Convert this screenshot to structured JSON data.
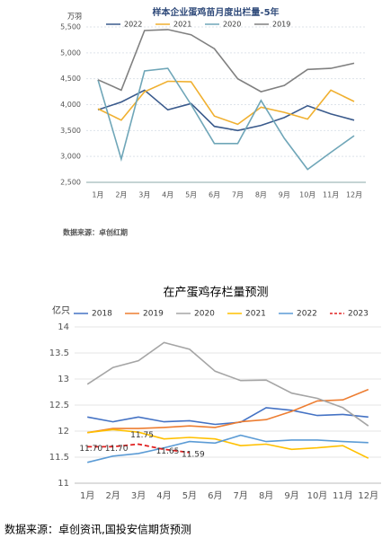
{
  "chart_data": [
    {
      "type": "line",
      "title": "样本企业蛋鸡苗月度出栏量-5年",
      "y_unit": "万羽",
      "source": "数据来源：卓创红期",
      "categories": [
        "1月",
        "2月",
        "3月",
        "4月",
        "5月",
        "6月",
        "7月",
        "8月",
        "9月",
        "10月",
        "11月",
        "12月"
      ],
      "ylim": [
        2500,
        5500
      ],
      "yticks": [
        {
          "value": 2500,
          "label": "2,500"
        },
        {
          "value": 3000,
          "label": "3,000"
        },
        {
          "value": 3500,
          "label": "3,500"
        },
        {
          "value": 4000,
          "label": "4,000"
        },
        {
          "value": 4500,
          "label": "4,500"
        },
        {
          "value": 5000,
          "label": "5,000"
        },
        {
          "value": 5500,
          "label": "5,500"
        }
      ],
      "grid": true,
      "series": [
        {
          "name": "2022",
          "color": "#3a5a8c",
          "values": [
            3900,
            4050,
            4280,
            3900,
            4020,
            3580,
            3500,
            3600,
            3750,
            3980,
            3820,
            3700
          ]
        },
        {
          "name": "2021",
          "color": "#f0b030",
          "values": [
            3920,
            3700,
            4250,
            4450,
            4440,
            3780,
            3620,
            3950,
            3850,
            3720,
            4280,
            4060
          ]
        },
        {
          "name": "2020",
          "color": "#6fa6b8",
          "values": [
            4480,
            2950,
            4650,
            4700,
            4000,
            3250,
            3250,
            4080,
            3350,
            2750,
            3080,
            3400
          ]
        },
        {
          "name": "2019",
          "color": "#808080",
          "values": [
            4480,
            4280,
            5430,
            5450,
            5350,
            5080,
            4500,
            4250,
            4370,
            4680,
            4700,
            4800
          ]
        }
      ]
    },
    {
      "type": "line",
      "title": "在产蛋鸡存栏量预测",
      "y_unit": "亿只",
      "source": "数据来源：卓创资讯,国投安信期货预测",
      "categories": [
        "1月",
        "2月",
        "3月",
        "4月",
        "5月",
        "6月",
        "7月",
        "8月",
        "9月",
        "10月",
        "11月",
        "12月"
      ],
      "ylim": [
        11,
        14
      ],
      "yticks": [
        11,
        11.5,
        12,
        12.5,
        13,
        13.5,
        14
      ],
      "grid": true,
      "series": [
        {
          "name": "2018",
          "color": "#4472c4",
          "values": [
            12.27,
            12.18,
            12.27,
            12.18,
            12.2,
            12.13,
            12.17,
            12.45,
            12.4,
            12.3,
            12.32,
            12.27
          ]
        },
        {
          "name": "2019",
          "color": "#ed7d31",
          "values": [
            11.97,
            12.05,
            12.05,
            12.07,
            12.1,
            12.07,
            12.18,
            12.22,
            12.38,
            12.58,
            12.6,
            12.8
          ]
        },
        {
          "name": "2020",
          "color": "#a5a5a5",
          "values": [
            12.9,
            13.22,
            13.35,
            13.7,
            13.57,
            13.15,
            12.97,
            12.98,
            12.73,
            12.63,
            12.45,
            12.1
          ]
        },
        {
          "name": "2021",
          "color": "#ffc000",
          "values": [
            11.97,
            12.03,
            11.98,
            11.85,
            11.88,
            11.85,
            11.72,
            11.75,
            11.65,
            11.68,
            11.72,
            11.48
          ]
        },
        {
          "name": "2022",
          "color": "#5b9bd5",
          "values": [
            11.4,
            11.52,
            11.57,
            11.68,
            11.8,
            11.77,
            11.92,
            11.8,
            11.83,
            11.83,
            11.8,
            11.78
          ]
        },
        {
          "name": "2023",
          "color": "#e02020",
          "dash": true,
          "values": [
            11.7,
            11.7,
            11.75,
            11.65,
            11.59,
            null,
            null,
            null,
            null,
            null,
            null,
            null
          ],
          "value_labels": [
            "11.70",
            "11.70",
            "11.75",
            "11.65",
            "11.59",
            null,
            null,
            null,
            null,
            null,
            null,
            null
          ]
        }
      ]
    }
  ]
}
